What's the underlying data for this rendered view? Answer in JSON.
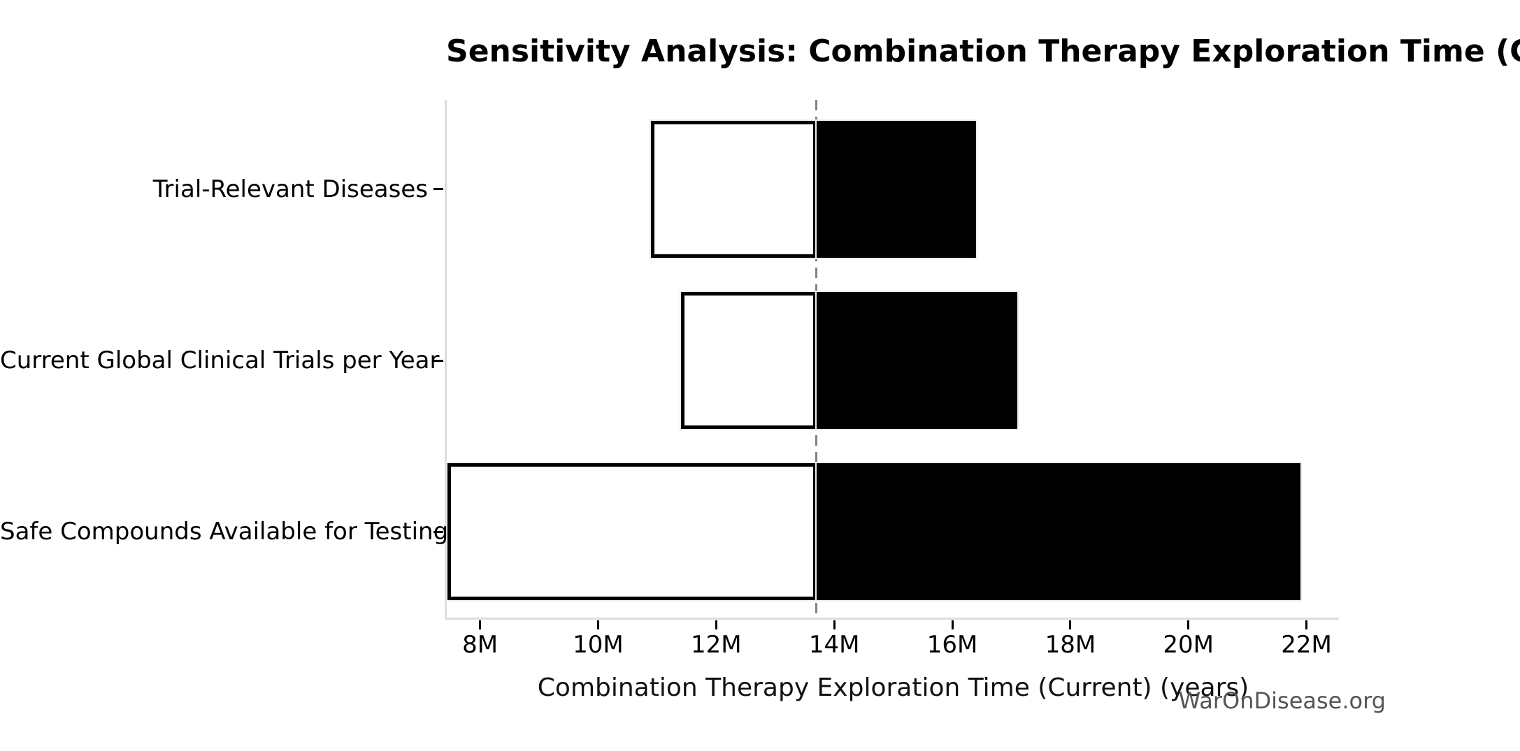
{
  "chart_data": {
    "type": "bar",
    "subtype": "tornado-sensitivity",
    "title": "Sensitivity Analysis: Combination Therapy Exploration Time (Current)",
    "xlabel": "Combination Therapy Exploration Time (Current) (years)",
    "watermark": "WarOnDisease.org",
    "orientation": "horizontal",
    "grid": false,
    "legend": null,
    "xlim": [
      7.4,
      22.55
    ],
    "baseline_value": 13.7,
    "x_ticks": [
      {
        "value": 8,
        "label": "8M"
      },
      {
        "value": 10,
        "label": "10M"
      },
      {
        "value": 12,
        "label": "12M"
      },
      {
        "value": 14,
        "label": "14M"
      },
      {
        "value": 16,
        "label": "16M"
      },
      {
        "value": 18,
        "label": "18M"
      },
      {
        "value": 20,
        "label": "20M"
      },
      {
        "value": 22,
        "label": "22M"
      }
    ],
    "rows": [
      {
        "label": "Trial-Relevant Diseases",
        "low": 10.9,
        "base": 13.7,
        "high": 16.4
      },
      {
        "label": "Current Global Clinical Trials per Year",
        "low": 11.4,
        "base": 13.7,
        "high": 17.1
      },
      {
        "label": "Safe Compounds Available for Testing",
        "low": 7.45,
        "base": 13.7,
        "high": 21.9
      }
    ],
    "colors": {
      "low_fill": "#ffffff",
      "high_fill": "#000000",
      "bar_edge": "#000000",
      "baseline_line": "#828282",
      "spine": "#dcdcdc",
      "tick": "#000000",
      "text": "#000000",
      "watermark": "#555555"
    }
  }
}
